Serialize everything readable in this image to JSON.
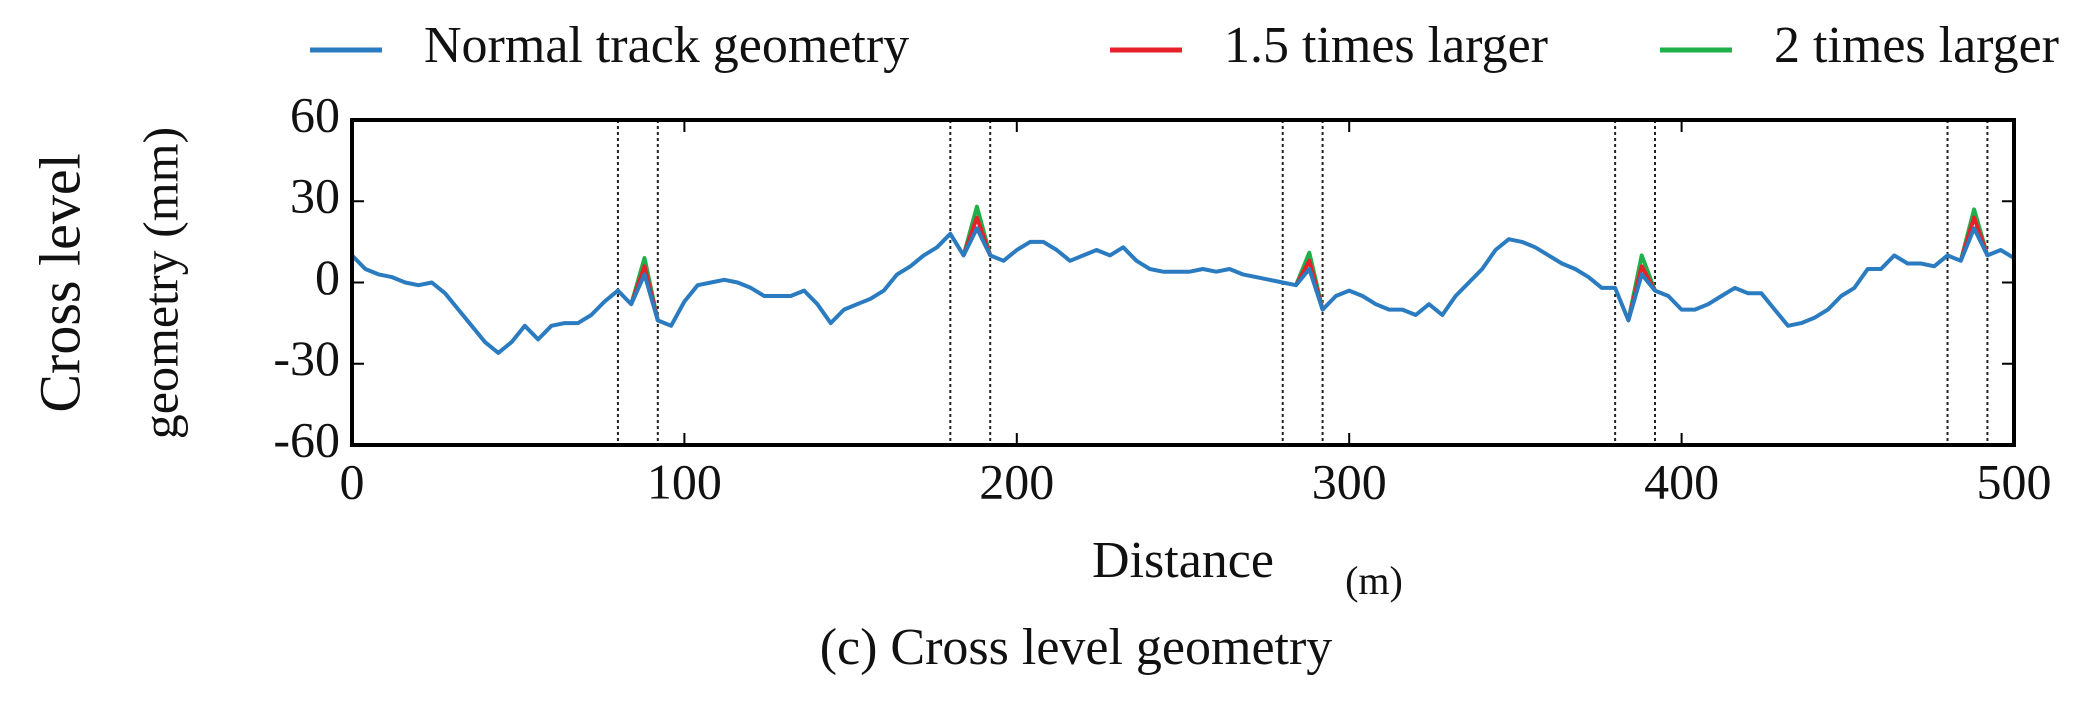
{
  "chart_data": {
    "type": "line",
    "caption": "(c) Cross level geometry",
    "x_label": "Distance",
    "x_unit": "(m)",
    "y_label_lines": [
      "Cross level",
      "geometry (mm)"
    ],
    "xlim": [
      0,
      500
    ],
    "ylim": [
      -60,
      60
    ],
    "xticks": [
      0,
      100,
      200,
      300,
      400,
      500
    ],
    "yticks": [
      -60,
      -30,
      0,
      30,
      60
    ],
    "grid": false,
    "legend": "top",
    "reference_lines": [
      80,
      92,
      180,
      192,
      280,
      292,
      380,
      392,
      480,
      492
    ],
    "x": [
      0,
      4,
      8,
      12,
      16,
      20,
      24,
      28,
      32,
      36,
      40,
      44,
      48,
      52,
      56,
      60,
      64,
      68,
      72,
      76,
      80,
      84,
      88,
      92,
      96,
      100,
      104,
      108,
      112,
      116,
      120,
      124,
      128,
      132,
      136,
      140,
      144,
      148,
      152,
      156,
      160,
      164,
      168,
      172,
      176,
      180,
      184,
      188,
      192,
      196,
      200,
      204,
      208,
      212,
      216,
      220,
      224,
      228,
      232,
      236,
      240,
      244,
      248,
      252,
      256,
      260,
      264,
      268,
      272,
      276,
      280,
      284,
      288,
      292,
      296,
      300,
      304,
      308,
      312,
      316,
      320,
      324,
      328,
      332,
      336,
      340,
      344,
      348,
      352,
      356,
      360,
      364,
      368,
      372,
      376,
      380,
      384,
      388,
      392,
      396,
      400,
      404,
      408,
      412,
      416,
      420,
      424,
      428,
      432,
      436,
      440,
      444,
      448,
      452,
      456,
      460,
      464,
      468,
      472,
      476,
      480,
      484,
      488,
      492,
      496,
      500
    ],
    "series": [
      {
        "name": "Normal track geometry",
        "color": "#2a7bbf",
        "values": [
          10,
          5,
          3,
          2,
          0,
          -1,
          0,
          -4,
          -10,
          -16,
          -22,
          -26,
          -22,
          -16,
          -21,
          -16,
          -15,
          -15,
          -12,
          -7,
          -3,
          -8,
          3,
          -14,
          -16,
          -7,
          -1,
          0,
          1,
          0,
          -2,
          -5,
          -5,
          -5,
          -3,
          -8,
          -15,
          -10,
          -8,
          -6,
          -3,
          3,
          6,
          10,
          13,
          18,
          10,
          20,
          10,
          8,
          12,
          15,
          15,
          12,
          8,
          10,
          12,
          10,
          13,
          8,
          5,
          4,
          4,
          4,
          5,
          4,
          5,
          3,
          2,
          1,
          0,
          -1,
          5,
          -10,
          -5,
          -3,
          -5,
          -8,
          -10,
          -10,
          -12,
          -8,
          -12,
          -5,
          0,
          5,
          12,
          16,
          15,
          13,
          10,
          7,
          5,
          2,
          -2,
          -2,
          -14,
          3,
          -3,
          -5,
          -10,
          -10,
          -8,
          -5,
          -2,
          -4,
          -4,
          -10,
          -16,
          -15,
          -13,
          -10,
          -5,
          -2,
          5,
          5,
          10,
          7,
          7,
          6,
          10,
          8,
          20,
          10,
          12,
          9
        ]
      },
      {
        "name": "1.5 times larger",
        "color": "#e8202a",
        "values": [
          null,
          null,
          null,
          null,
          null,
          null,
          null,
          null,
          null,
          null,
          null,
          null,
          null,
          null,
          null,
          null,
          null,
          null,
          null,
          null,
          null,
          -8,
          6,
          -14,
          null,
          null,
          null,
          null,
          null,
          null,
          null,
          null,
          null,
          null,
          null,
          null,
          null,
          null,
          null,
          null,
          null,
          null,
          null,
          null,
          null,
          null,
          10,
          24,
          10,
          null,
          null,
          null,
          null,
          null,
          null,
          null,
          null,
          null,
          null,
          null,
          null,
          null,
          null,
          null,
          null,
          null,
          null,
          null,
          null,
          null,
          null,
          -1,
          8,
          -10,
          null,
          null,
          null,
          null,
          null,
          null,
          null,
          null,
          null,
          null,
          null,
          null,
          null,
          null,
          null,
          null,
          null,
          null,
          null,
          null,
          null,
          null,
          -14,
          6,
          -3,
          null,
          null,
          null,
          null,
          null,
          null,
          null,
          null,
          null,
          null,
          null,
          null,
          null,
          null,
          null,
          null,
          null,
          null,
          null,
          null,
          null,
          null,
          8,
          24,
          10,
          null,
          null
        ]
      },
      {
        "name": "2 times larger",
        "color": "#1fb04a",
        "values": [
          null,
          null,
          null,
          null,
          null,
          null,
          null,
          null,
          null,
          null,
          null,
          null,
          null,
          null,
          null,
          null,
          null,
          null,
          null,
          null,
          null,
          -8,
          9,
          -14,
          null,
          null,
          null,
          null,
          null,
          null,
          null,
          null,
          null,
          null,
          null,
          null,
          null,
          null,
          null,
          null,
          null,
          null,
          null,
          null,
          null,
          null,
          10,
          28,
          10,
          null,
          null,
          null,
          null,
          null,
          null,
          null,
          null,
          null,
          null,
          null,
          null,
          null,
          null,
          null,
          null,
          null,
          null,
          null,
          null,
          null,
          null,
          -1,
          11,
          -10,
          null,
          null,
          null,
          null,
          null,
          null,
          null,
          null,
          null,
          null,
          null,
          null,
          null,
          null,
          null,
          null,
          null,
          null,
          null,
          null,
          null,
          null,
          -14,
          10,
          -3,
          null,
          null,
          null,
          null,
          null,
          null,
          null,
          null,
          null,
          null,
          null,
          null,
          null,
          null,
          null,
          null,
          null,
          null,
          null,
          null,
          null,
          null,
          8,
          27,
          10,
          null,
          null
        ]
      }
    ]
  }
}
